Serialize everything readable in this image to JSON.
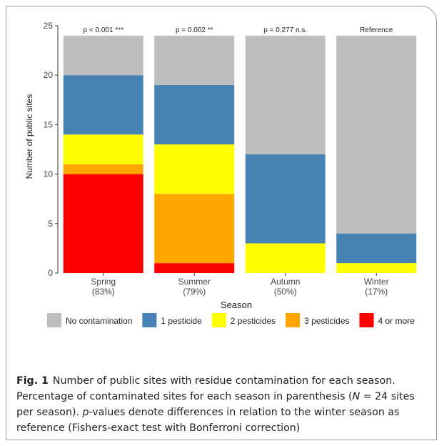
{
  "chart_data": {
    "type": "bar",
    "stacked": true,
    "categories": [
      "Spring",
      "Summer",
      "Autumn",
      "Winter"
    ],
    "category_percentages": [
      "(83%)",
      "(79%)",
      "(50%)",
      "(17%)"
    ],
    "p_value_labels": [
      "p < 0.001 ***",
      "p = 0.002 **",
      "p = 0.277 n.s.",
      "Reference"
    ],
    "series": [
      {
        "name": "4 or more",
        "color": "#ff0000",
        "values": [
          10,
          1,
          0,
          0
        ]
      },
      {
        "name": "3 pesticides",
        "color": "#ffa500",
        "values": [
          1,
          7,
          0,
          0
        ]
      },
      {
        "name": "2 pesticides",
        "color": "#ffff00",
        "values": [
          3,
          5,
          3,
          1
        ]
      },
      {
        "name": "1 pesticide",
        "color": "#4682b4",
        "values": [
          6,
          6,
          9,
          3
        ]
      },
      {
        "name": "No contamination",
        "color": "#bebebe",
        "values": [
          4,
          5,
          12,
          20
        ]
      }
    ],
    "legend_order": [
      "No contamination",
      "1 pesticide",
      "2 pesticides",
      "3 pesticides",
      "4 or more"
    ],
    "legend_position": "bottom",
    "xlabel": "Season",
    "ylabel": "Number of public sites",
    "ylim": [
      0,
      25
    ],
    "yticks": [
      0,
      5,
      10,
      15,
      20,
      25
    ],
    "grid": false
  },
  "caption": {
    "label": "Fig. 1",
    "text_1": "Number of public sites with residue contamination for each season. Percentage of contaminated sites for each season in parenthesis (",
    "n_symbol": "N",
    "text_2": " = 24 sites per season). ",
    "p_symbol": "p",
    "text_3": "-values denote differences in relation to the winter season as reference (Fishers-exact test with Bonferroni correction)"
  }
}
